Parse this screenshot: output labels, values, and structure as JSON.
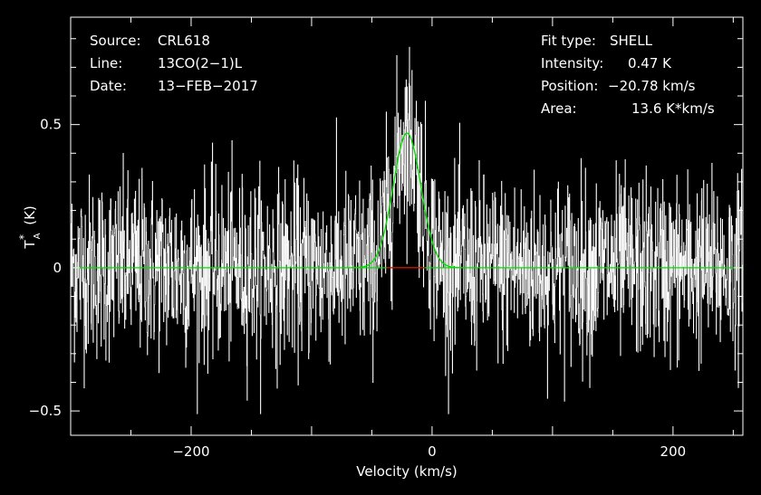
{
  "chart_data": {
    "type": "line",
    "xlabel": "Velocity (km/s)",
    "ylabel": "T",
    "ylabel_sup": "*",
    "ylabel_sub": "A",
    "ylabel_unit": "(K)",
    "xlim": [
      -300,
      258
    ],
    "ylim": [
      -0.585,
      0.875
    ],
    "xticks": [
      {
        "value": -200,
        "label": "−200"
      },
      {
        "value": 0,
        "label": "0"
      },
      {
        "value": 200,
        "label": "200"
      }
    ],
    "yticks": [
      {
        "value": 0.5,
        "label": "0.5"
      },
      {
        "value": 0,
        "label": "0"
      },
      {
        "value": -0.5,
        "label": "−0.5"
      }
    ],
    "header_left": [
      {
        "key": "Source:",
        "value": "CRL618"
      },
      {
        "key": "Line:",
        "value": "13CO(2−1)L"
      },
      {
        "key": "Date:",
        "value": "13−FEB−2017"
      }
    ],
    "header_right": [
      {
        "key": "Fit type:",
        "value": "SHELL"
      },
      {
        "key": "Intensity:",
        "value": "0.47 K"
      },
      {
        "key": "Position:",
        "value": "−20.78 km/s"
      },
      {
        "key": "Area:",
        "value": "13.6 K*km/s"
      }
    ],
    "series": [
      {
        "role": "spectrum",
        "style": "histogram",
        "color": "#ffffff",
        "noise_rms_K": 0.16,
        "channel_width_kms": 0.3,
        "x_range": [
          -300,
          258
        ],
        "line_center_kms": -20.78,
        "line_peak_K": 0.47
      },
      {
        "role": "fit",
        "color": "#00e000",
        "fit_type": "SHELL",
        "center_kms": -20.78,
        "peak_K": 0.47,
        "area_Kkms": 13.6
      },
      {
        "role": "fit-window",
        "color": "#e00000",
        "x_range": [
          -38,
          -6
        ],
        "y": 0
      }
    ]
  }
}
